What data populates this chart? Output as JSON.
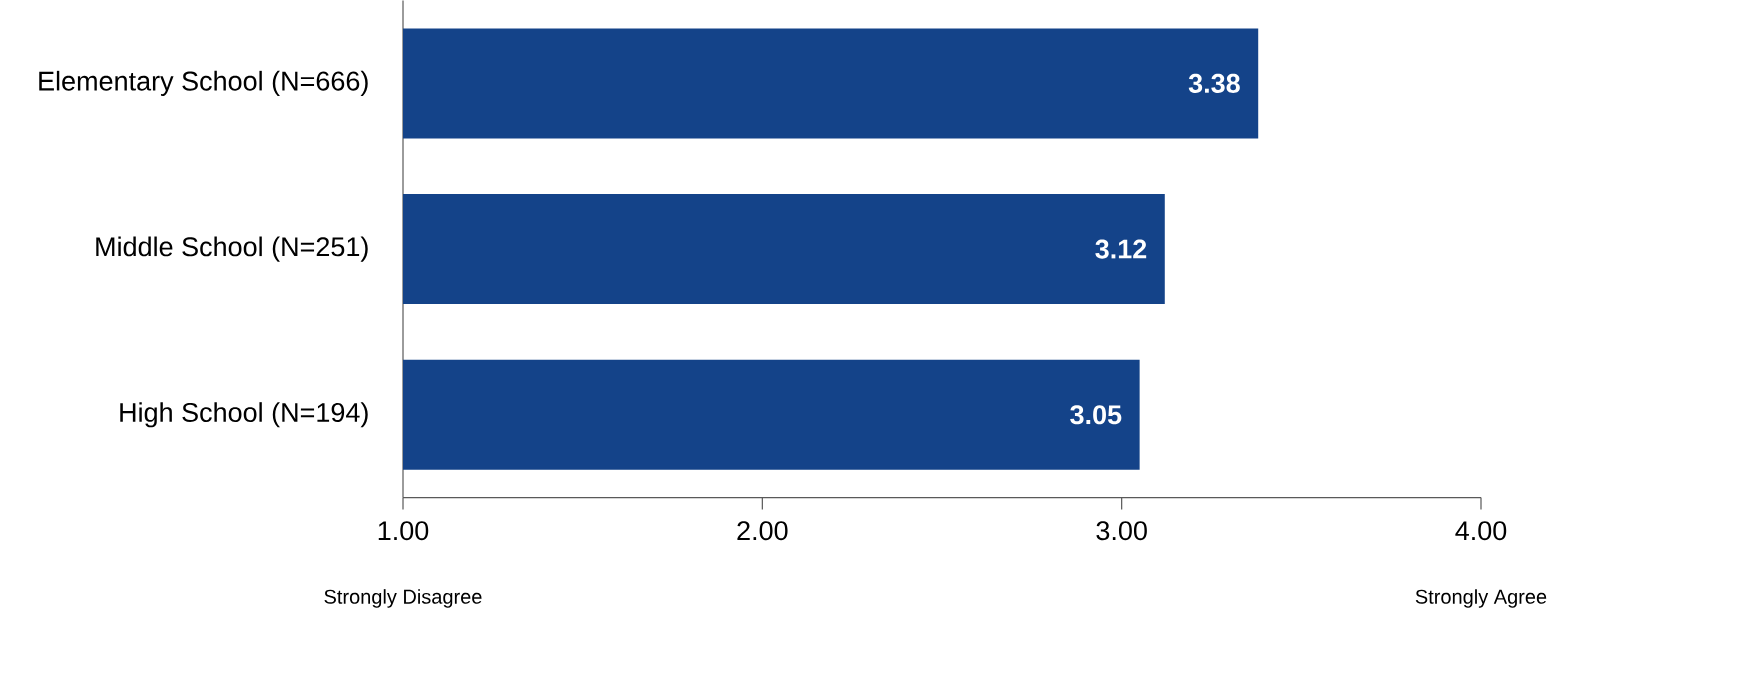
{
  "chart_data": {
    "type": "bar",
    "orientation": "horizontal",
    "categories": [
      "Elementary School (N=666)",
      "Middle School (N=251)",
      "High School (N=194)"
    ],
    "values": [
      3.38,
      3.12,
      3.05
    ],
    "color": "#144389",
    "data_labels": true,
    "xlim": [
      1,
      4
    ],
    "xticks": [
      {
        "value": 1,
        "label": "1.00"
      },
      {
        "value": 2,
        "label": "2.00"
      },
      {
        "value": 3,
        "label": "3.00"
      },
      {
        "value": 4,
        "label": "4.00"
      }
    ],
    "grid": false,
    "annotations": [
      "Strongly Disagree",
      "Strongly Agree"
    ]
  }
}
